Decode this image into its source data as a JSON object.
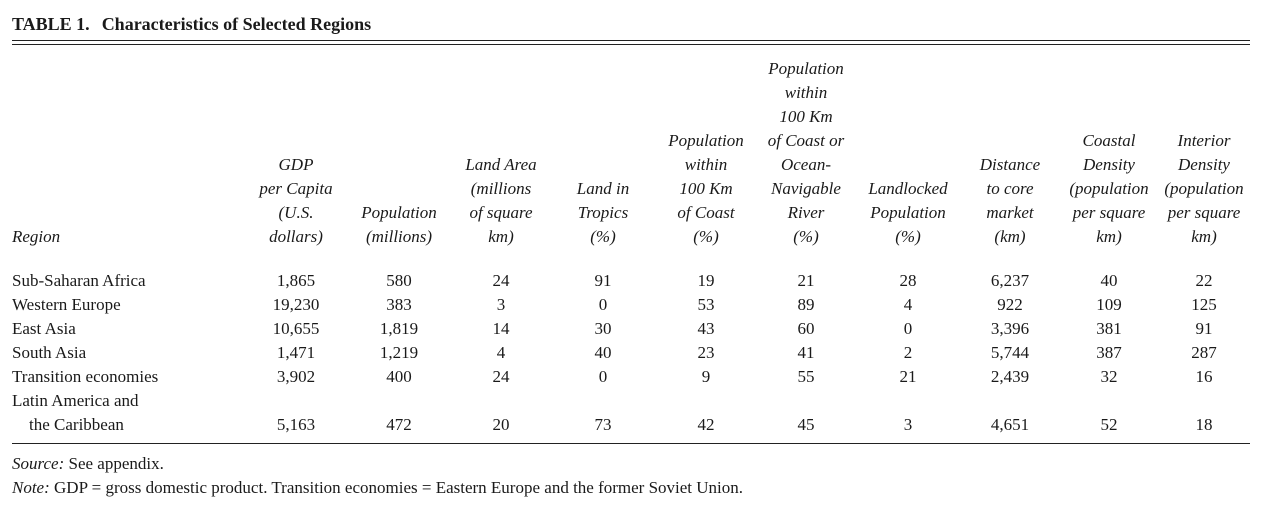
{
  "title": {
    "number": "TABLE 1.",
    "text": "Characteristics of Selected Regions"
  },
  "columns": [
    {
      "key": "region",
      "lines": [
        "Region"
      ]
    },
    {
      "key": "gdp",
      "lines": [
        "GDP",
        "per Capita",
        "(U.S.",
        "dollars)"
      ]
    },
    {
      "key": "population",
      "lines": [
        "Population",
        "(millions)"
      ]
    },
    {
      "key": "land_area",
      "lines": [
        "Land Area",
        "(millions",
        "of square",
        "km)"
      ]
    },
    {
      "key": "tropics",
      "lines": [
        "Land in",
        "Tropics",
        "(%)"
      ]
    },
    {
      "key": "coast",
      "lines": [
        "Population",
        "within",
        "100 Km",
        "of Coast",
        "(%)"
      ]
    },
    {
      "key": "coast_river",
      "lines": [
        "Population",
        "within",
        "100 Km",
        "of Coast or",
        "Ocean-",
        "Navigable",
        "River",
        "(%)"
      ]
    },
    {
      "key": "landlocked",
      "lines": [
        "Landlocked",
        "Population",
        "(%)"
      ]
    },
    {
      "key": "distance",
      "lines": [
        "Distance",
        "to core",
        "market",
        "(km)"
      ]
    },
    {
      "key": "coastal_density",
      "lines": [
        "Coastal",
        "Density",
        "(population",
        "per square",
        "km)"
      ]
    },
    {
      "key": "interior_density",
      "lines": [
        "Interior",
        "Density",
        "(population",
        "per square",
        "km)"
      ]
    }
  ],
  "rows": [
    {
      "region": [
        "Sub-Saharan Africa"
      ],
      "values": [
        "1,865",
        "580",
        "24",
        "91",
        "19",
        "21",
        "28",
        "6,237",
        "40",
        "22"
      ]
    },
    {
      "region": [
        "Western Europe"
      ],
      "values": [
        "19,230",
        "383",
        "3",
        "0",
        "53",
        "89",
        "4",
        "922",
        "109",
        "125"
      ]
    },
    {
      "region": [
        "East Asia"
      ],
      "values": [
        "10,655",
        "1,819",
        "14",
        "30",
        "43",
        "60",
        "0",
        "3,396",
        "381",
        "91"
      ]
    },
    {
      "region": [
        "South Asia"
      ],
      "values": [
        "1,471",
        "1,219",
        "4",
        "40",
        "23",
        "41",
        "2",
        "5,744",
        "387",
        "287"
      ]
    },
    {
      "region": [
        "Transition economies"
      ],
      "values": [
        "3,902",
        "400",
        "24",
        "0",
        "9",
        "55",
        "21",
        "2,439",
        "32",
        "16"
      ]
    },
    {
      "region": [
        "Latin America and",
        "the Caribbean"
      ],
      "values": [
        "5,163",
        "472",
        "20",
        "73",
        "42",
        "45",
        "3",
        "4,651",
        "52",
        "18"
      ]
    }
  ],
  "notes": [
    {
      "label": "Source:",
      "text": " See appendix."
    },
    {
      "label": "Note:",
      "text": " GDP = gross domestic product. Transition economies = Eastern Europe and the former Soviet Union."
    }
  ]
}
